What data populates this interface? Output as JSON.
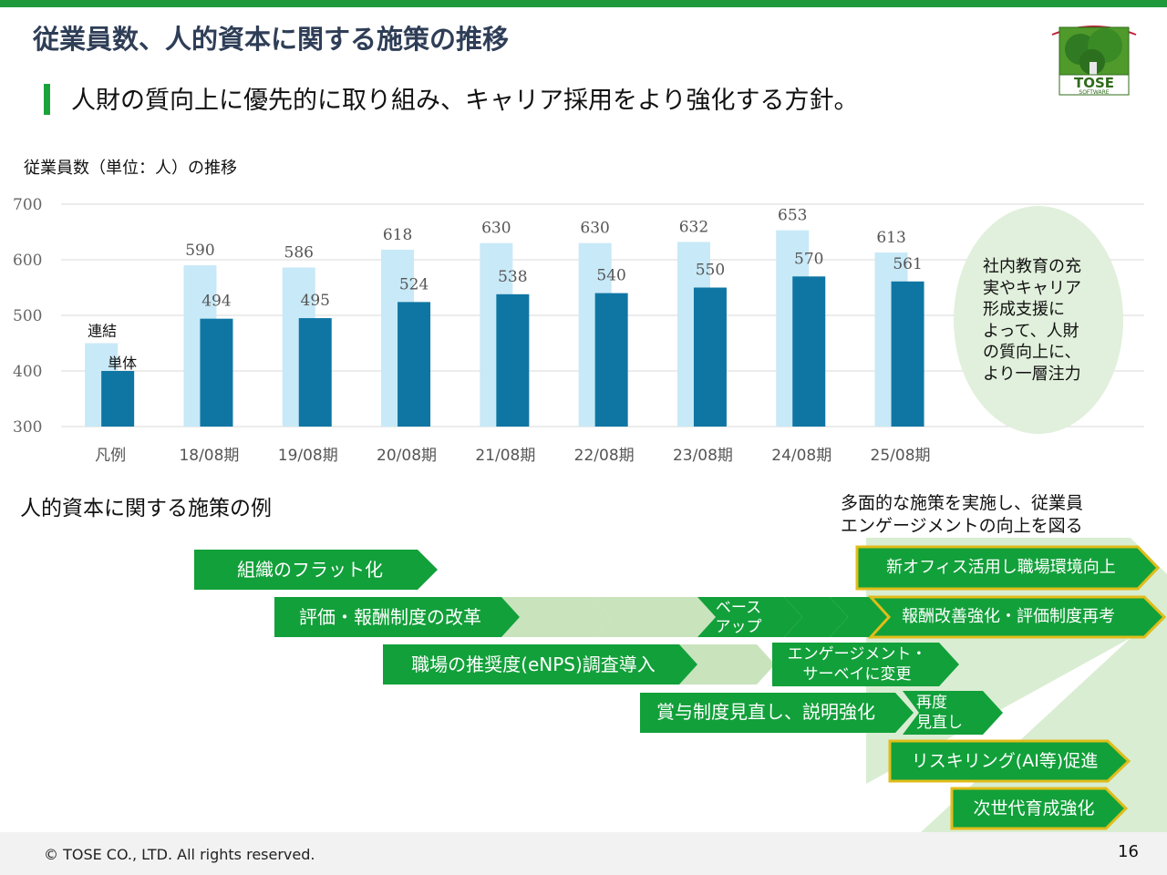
{
  "slide": {
    "title": "従業員数、人的資本に関する施策の推移",
    "subtitle": "人財の質向上に優先的に取り組み、キャリア採用をより強化する方針。",
    "chart_caption": "従業員数（単位：人）の推移",
    "examples_heading": "人的資本に関する施策の例",
    "right_heading_line1": "多面的な施策を実施し、従業員",
    "right_heading_line2": "エンゲージメントの向上を図る",
    "copyright": "© TOSE CO., LTD. All rights reserved.",
    "page_number": "16",
    "logo_text": "TOSE",
    "logo_subtext": "SOFTWARE"
  },
  "note": {
    "lines": [
      "社内教育の充",
      "実やキャリア",
      "形成支援に",
      "よって、人財",
      "の質向上に、",
      "より一層注力"
    ]
  },
  "chart_data": {
    "type": "bar",
    "categories": [
      "凡例",
      "18/08期",
      "19/08期",
      "20/08期",
      "21/08期",
      "22/08期",
      "23/08期",
      "24/08期",
      "25/08期"
    ],
    "ylim": [
      300,
      700
    ],
    "yticks": [
      300,
      400,
      500,
      600,
      700
    ],
    "grid": "horizontal",
    "series": [
      {
        "name": "連結",
        "color": "#c8e9f7",
        "values": [
          450,
          590,
          586,
          618,
          630,
          630,
          632,
          653,
          613
        ],
        "labels": [
          null,
          "590",
          "586",
          "618",
          "630",
          "630",
          "632",
          "653",
          "613"
        ]
      },
      {
        "name": "単体",
        "color": "#0f76a4",
        "values": [
          400,
          494,
          495,
          524,
          538,
          540,
          550,
          570,
          561
        ],
        "labels": [
          null,
          "494",
          "495",
          "524",
          "538",
          "540",
          "550",
          "570",
          "561"
        ]
      }
    ]
  },
  "measures": {
    "rows": [
      {
        "name": "measure-flat-organization",
        "main_label": "組織のフラット化",
        "chevrons": [],
        "end_label": ""
      },
      {
        "name": "measure-evaluation-reform",
        "main_label": "評価・報酬制度の改革",
        "chevrons": [
          "",
          "",
          "ベース",
          "アップ",
          "",
          ""
        ],
        "end_label": "報酬改善強化・評価制度再考"
      },
      {
        "name": "measure-enps-survey",
        "main_label": "職場の推奨度(eNPS)調査導入",
        "chevrons": [
          ""
        ],
        "end_label": ""
      },
      {
        "name": "measure-bonus-review",
        "main_label": "賞与制度見直し、説明強化",
        "chevrons": [],
        "end_label": ""
      }
    ],
    "engagement_change_line1": "エンゲージメント・",
    "engagement_change_line2": "サーベイに変更",
    "bonus_review_line1": "再度",
    "bonus_review_line2": "見直し",
    "base_up_line1": "ベース",
    "base_up_line2": "アップ",
    "new_office": "新オフィス活用し職場環境向上",
    "reskilling": "リスキリング(AI等)促進",
    "next_generation": "次世代育成強化",
    "colors": {
      "green": "#12a03a",
      "light_green": "#c9e3bd",
      "yellow_border": "#e0bd1a"
    }
  }
}
